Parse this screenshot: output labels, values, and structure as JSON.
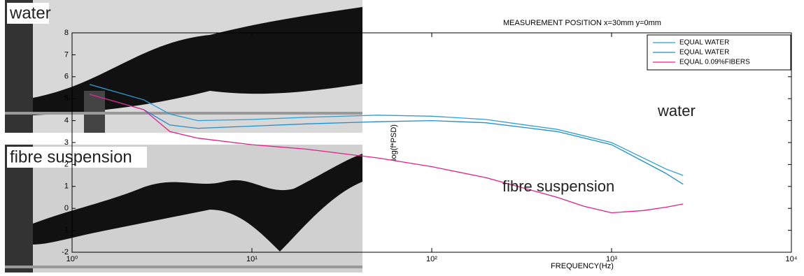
{
  "panels": [
    {
      "label": "water"
    },
    {
      "label": "fibre suspension"
    }
  ],
  "chart_data": {
    "type": "line",
    "title": "MEASUREMENT POSITION x=30mm y=0mm",
    "x_label": "FREQUENCY(Hz)",
    "y_label": "log(f*PSD)",
    "x_scale": "log",
    "xlim": [
      1,
      10000
    ],
    "xticks": [
      {
        "value": 1,
        "label": "10⁰"
      },
      {
        "value": 10,
        "label": "10¹"
      },
      {
        "value": 100,
        "label": "10²"
      },
      {
        "value": 1000,
        "label": "10³"
      },
      {
        "value": 10000,
        "label": "10⁴"
      }
    ],
    "ylim": [
      -2,
      8
    ],
    "yticks": [
      -2,
      -1,
      0,
      1,
      2,
      3,
      4,
      5,
      6,
      7,
      8
    ],
    "legend": "top-right",
    "series": [
      {
        "name": "EQUAL WATER",
        "color": "#2a9fd6",
        "x": [
          1.25,
          2.5,
          3.5,
          5,
          10,
          20,
          50,
          100,
          200,
          500,
          1000,
          2000,
          2500
        ],
        "values": [
          5.65,
          4.95,
          4.3,
          4.0,
          4.05,
          4.15,
          4.25,
          4.2,
          4.05,
          3.6,
          3.0,
          1.8,
          1.5
        ]
      },
      {
        "name": "EQUAL WATER",
        "color": "#1f8fc8",
        "x": [
          1.25,
          2.5,
          3.5,
          5,
          10,
          20,
          50,
          100,
          200,
          500,
          1000,
          2000,
          2500
        ],
        "values": [
          5.2,
          4.5,
          3.8,
          3.65,
          3.75,
          3.85,
          3.95,
          4.0,
          3.9,
          3.5,
          2.9,
          1.6,
          1.1
        ]
      },
      {
        "name": "EQUAL 0.09%FIBERS",
        "color": "#e0218a",
        "x": [
          1.25,
          2.5,
          3.5,
          5,
          10,
          20,
          50,
          100,
          200,
          300,
          500,
          700,
          1000,
          1500,
          2000,
          2500
        ],
        "values": [
          5.2,
          4.5,
          3.5,
          3.2,
          2.9,
          2.7,
          2.3,
          1.9,
          1.4,
          1.0,
          0.5,
          0.1,
          -0.2,
          -0.1,
          0.05,
          0.2
        ]
      }
    ],
    "annotations": [
      "water",
      "fibre suspension"
    ]
  }
}
